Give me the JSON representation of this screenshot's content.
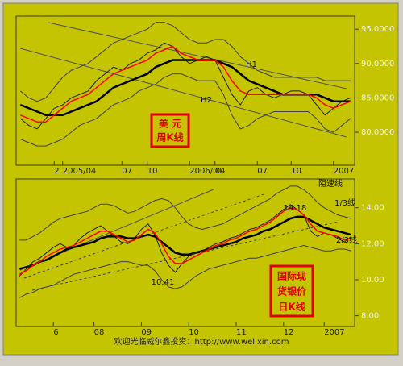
{
  "chart_data": [
    {
      "type": "line",
      "categories": [
        null,
        null,
        null,
        null,
        "2",
        "2005/04",
        null,
        null,
        null,
        null,
        null,
        null,
        "07",
        null,
        null,
        "10",
        null,
        null,
        null,
        null,
        "2006/01",
        null,
        null,
        "04",
        null,
        null,
        null,
        null,
        "07",
        null,
        null,
        null,
        "10",
        null,
        null,
        null,
        null,
        "2007",
        null,
        null
      ],
      "series": [
        {
          "color": "#404040",
          "values": [
            86,
            85,
            84.5,
            85,
            86.5,
            88,
            89,
            89.5,
            90,
            91,
            92,
            93,
            93.5,
            94,
            94.5,
            95,
            96,
            96,
            95.5,
            94.5,
            93.5,
            93,
            93,
            93.5,
            93.5,
            92.5,
            91,
            90,
            89,
            88.5,
            88,
            88,
            88,
            88,
            88,
            88,
            87.5,
            87.5,
            87.5,
            87.5
          ]
        },
        {
          "color": "#404040",
          "values": [
            79,
            78.5,
            78,
            78,
            78.5,
            79,
            80,
            81,
            81.5,
            82,
            83,
            84,
            84.5,
            85,
            86,
            86.5,
            87,
            88,
            88.5,
            88.5,
            88,
            87.5,
            87.5,
            87.5,
            85.5,
            82.5,
            80.5,
            81,
            82,
            82.5,
            83,
            83,
            83,
            83,
            83,
            82,
            80.5,
            80,
            81,
            82
          ]
        },
        {
          "color": "#000000",
          "values": [
            84,
            83.5,
            83,
            82.5,
            82.5,
            82.5,
            83,
            83.5,
            84,
            84.5,
            85.5,
            86.5,
            87,
            87.5,
            88,
            88.5,
            89.5,
            90,
            90.5,
            90.5,
            90.5,
            90.5,
            90.5,
            90.5,
            90,
            89.5,
            88.5,
            87.5,
            87,
            86.5,
            86,
            85.5,
            85.5,
            85.5,
            85.5,
            85.5,
            85,
            84.5,
            84.5,
            84.5
          ]
        },
        {
          "color": "#202020",
          "values": [
            82,
            81,
            80.5,
            82,
            83.5,
            84,
            85,
            85.5,
            86,
            87.5,
            88.5,
            89.5,
            89,
            90,
            90.5,
            91.5,
            92,
            93,
            92.5,
            91,
            90,
            90.5,
            91,
            90.5,
            88,
            85.5,
            84,
            86,
            86.5,
            85.5,
            85,
            85.5,
            86,
            86,
            85.5,
            84,
            82.5,
            83.5,
            84.5,
            85
          ]
        },
        {
          "color": "#ff0000",
          "values": [
            82.5,
            82,
            81.5,
            81.5,
            82.5,
            83.5,
            84.5,
            85,
            85.5,
            86.5,
            87.5,
            88.5,
            89,
            89.5,
            90,
            90.5,
            91.5,
            92,
            92.5,
            91.5,
            91,
            90.5,
            90.5,
            90.5,
            89.5,
            87.5,
            86,
            85.5,
            85.5,
            85.5,
            85.5,
            85.5,
            85.5,
            85.5,
            85.5,
            85,
            84,
            83.5,
            84,
            84.5
          ]
        }
      ],
      "ylim": [
        75.2,
        96.9
      ],
      "yticks": [
        {
          "value": 80,
          "label": "80.0000"
        },
        {
          "value": 85,
          "label": "85.0000"
        },
        {
          "value": 90,
          "label": "90.0000"
        },
        {
          "value": 95,
          "label": "95.0000"
        }
      ],
      "title": [
        "美  元",
        "周K线"
      ],
      "annotations": [
        "H1",
        "H2"
      ]
    },
    {
      "type": "line",
      "categories": [
        null,
        null,
        null,
        null,
        null,
        "6",
        null,
        null,
        null,
        null,
        null,
        "08",
        null,
        null,
        null,
        null,
        null,
        null,
        "09",
        null,
        null,
        null,
        null,
        null,
        null,
        "10",
        null,
        null,
        null,
        null,
        null,
        null,
        "11",
        null,
        null,
        null,
        null,
        null,
        null,
        "12",
        null,
        null,
        null,
        null,
        null,
        "2007",
        null,
        null,
        null,
        null
      ],
      "series": [
        {
          "color": "#404040",
          "values": [
            12.2,
            12.2,
            12.4,
            12.6,
            12.9,
            13.2,
            13.4,
            13.5,
            13.6,
            13.7,
            13.8,
            14,
            14.2,
            14.2,
            14.1,
            13.9,
            13.7,
            13.8,
            14,
            14.2,
            14.4,
            14.5,
            14.4,
            14,
            13.5,
            13.1,
            12.9,
            12.8,
            12.9,
            13,
            13.1,
            13.3,
            13.5,
            13.7,
            13.9,
            14.1,
            14.3,
            14.5,
            14.8,
            15,
            15.2,
            15.2,
            15,
            14.7,
            14.3,
            14,
            13.8,
            13.6,
            13.5,
            13.4
          ]
        },
        {
          "color": "#404040",
          "values": [
            9,
            9.2,
            9.3,
            9.5,
            9.6,
            9.7,
            9.9,
            10.1,
            10.3,
            10.4,
            10.5,
            10.6,
            10.7,
            10.8,
            10.9,
            11,
            11,
            10.9,
            10.8,
            10.8,
            10.5,
            10,
            9.6,
            9.5,
            9.6,
            9.9,
            10.2,
            10.4,
            10.6,
            10.7,
            10.8,
            10.9,
            11,
            11.1,
            11.2,
            11.2,
            11.3,
            11.4,
            11.5,
            11.6,
            11.7,
            11.8,
            11.9,
            11.8,
            11.7,
            11.6,
            11.6,
            11.7,
            11.7,
            11.6
          ]
        },
        {
          "color": "#000000",
          "values": [
            10.6,
            10.7,
            10.8,
            11,
            11.1,
            11.3,
            11.5,
            11.7,
            11.8,
            11.9,
            12,
            12.1,
            12.3,
            12.4,
            12.4,
            12.4,
            12.3,
            12.3,
            12.4,
            12.5,
            12.4,
            12.1,
            11.8,
            11.5,
            11.4,
            11.4,
            11.5,
            11.6,
            11.7,
            11.8,
            11.9,
            12,
            12.1,
            12.3,
            12.4,
            12.5,
            12.7,
            12.8,
            13,
            13.2,
            13.4,
            13.5,
            13.5,
            13.3,
            13.1,
            12.9,
            12.8,
            12.7,
            12.6,
            12.5
          ]
        },
        {
          "color": "#202020",
          "values": [
            10.2,
            10.6,
            11,
            11.2,
            11.5,
            11.8,
            12,
            11.8,
            11.9,
            12.3,
            12.6,
            12.8,
            13,
            12.7,
            12.4,
            12.1,
            12,
            12.3,
            12.8,
            13.1,
            12.5,
            11.5,
            10.8,
            10.41,
            10.9,
            11.3,
            11.5,
            11.6,
            11.8,
            12,
            12.1,
            12.3,
            12.4,
            12.6,
            12.8,
            12.9,
            13.1,
            13.3,
            13.6,
            13.9,
            14.18,
            13.9,
            13.6,
            12.7,
            12.4,
            12.6,
            12.5,
            12.3,
            12.1,
            12.4
          ]
        },
        {
          "color": "#ff0000",
          "values": [
            10.3,
            10.5,
            10.8,
            11,
            11.3,
            11.5,
            11.7,
            11.8,
            11.9,
            12.1,
            12.3,
            12.5,
            12.7,
            12.7,
            12.5,
            12.3,
            12.1,
            12.2,
            12.5,
            12.8,
            12.6,
            12,
            11.3,
            10.9,
            10.9,
            11.1,
            11.3,
            11.5,
            11.7,
            11.9,
            12,
            12.2,
            12.3,
            12.5,
            12.7,
            12.8,
            13,
            13.2,
            13.5,
            13.8,
            14,
            13.9,
            13.6,
            13.1,
            12.7,
            12.6,
            12.5,
            12.4,
            12.2,
            12.3
          ]
        }
      ],
      "ylim": [
        7.4,
        15.6
      ],
      "yticks": [
        {
          "value": 8,
          "label": "8.00"
        },
        {
          "value": 10,
          "label": "10.00"
        },
        {
          "value": 12,
          "label": "12.00"
        },
        {
          "value": 14,
          "label": "14.00"
        }
      ],
      "title": [
        "国际现",
        "货银价",
        "日K线"
      ],
      "annotations": [
        "阻速线",
        "14.18",
        "1/3线",
        "2/3线",
        "10.41"
      ]
    }
  ],
  "footer": "欢迎光临威尔鑫投资：http://www.wellxin.com"
}
